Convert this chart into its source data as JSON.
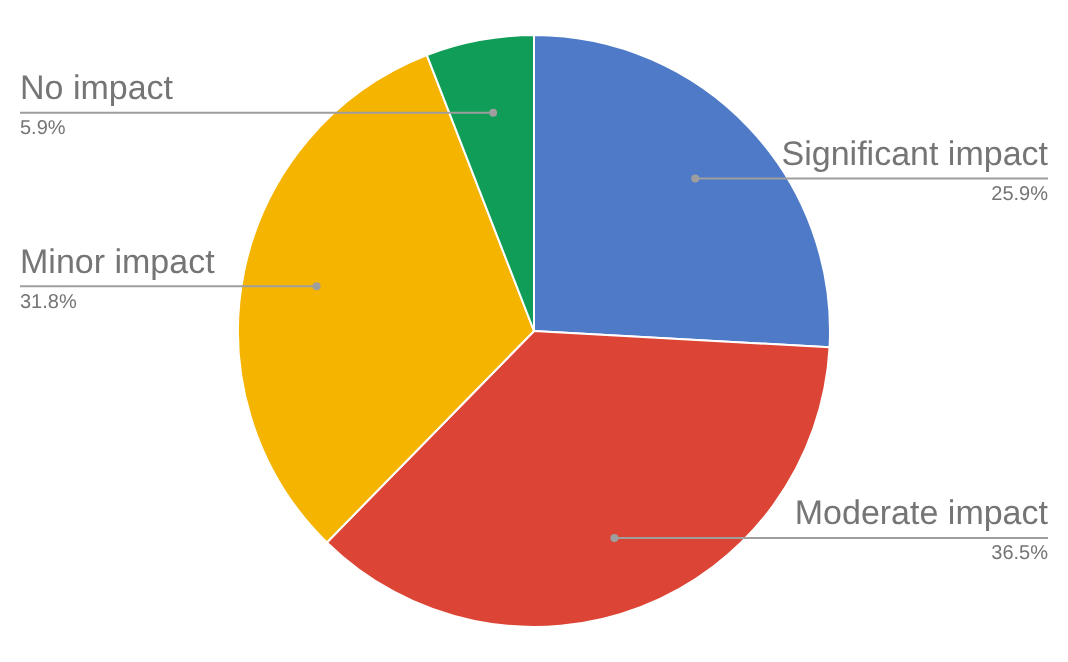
{
  "chart_data": {
    "type": "pie",
    "categories": [
      "Significant impact",
      "Moderate impact",
      "Minor impact",
      "No impact"
    ],
    "values": [
      25.9,
      36.5,
      31.8,
      5.9
    ],
    "colors": [
      "#4e7ac7",
      "#dc4435",
      "#f4b400",
      "#109d58"
    ],
    "value_labels": [
      "25.9%",
      "36.5%",
      "31.8%",
      "5.9%"
    ],
    "legend": false
  }
}
